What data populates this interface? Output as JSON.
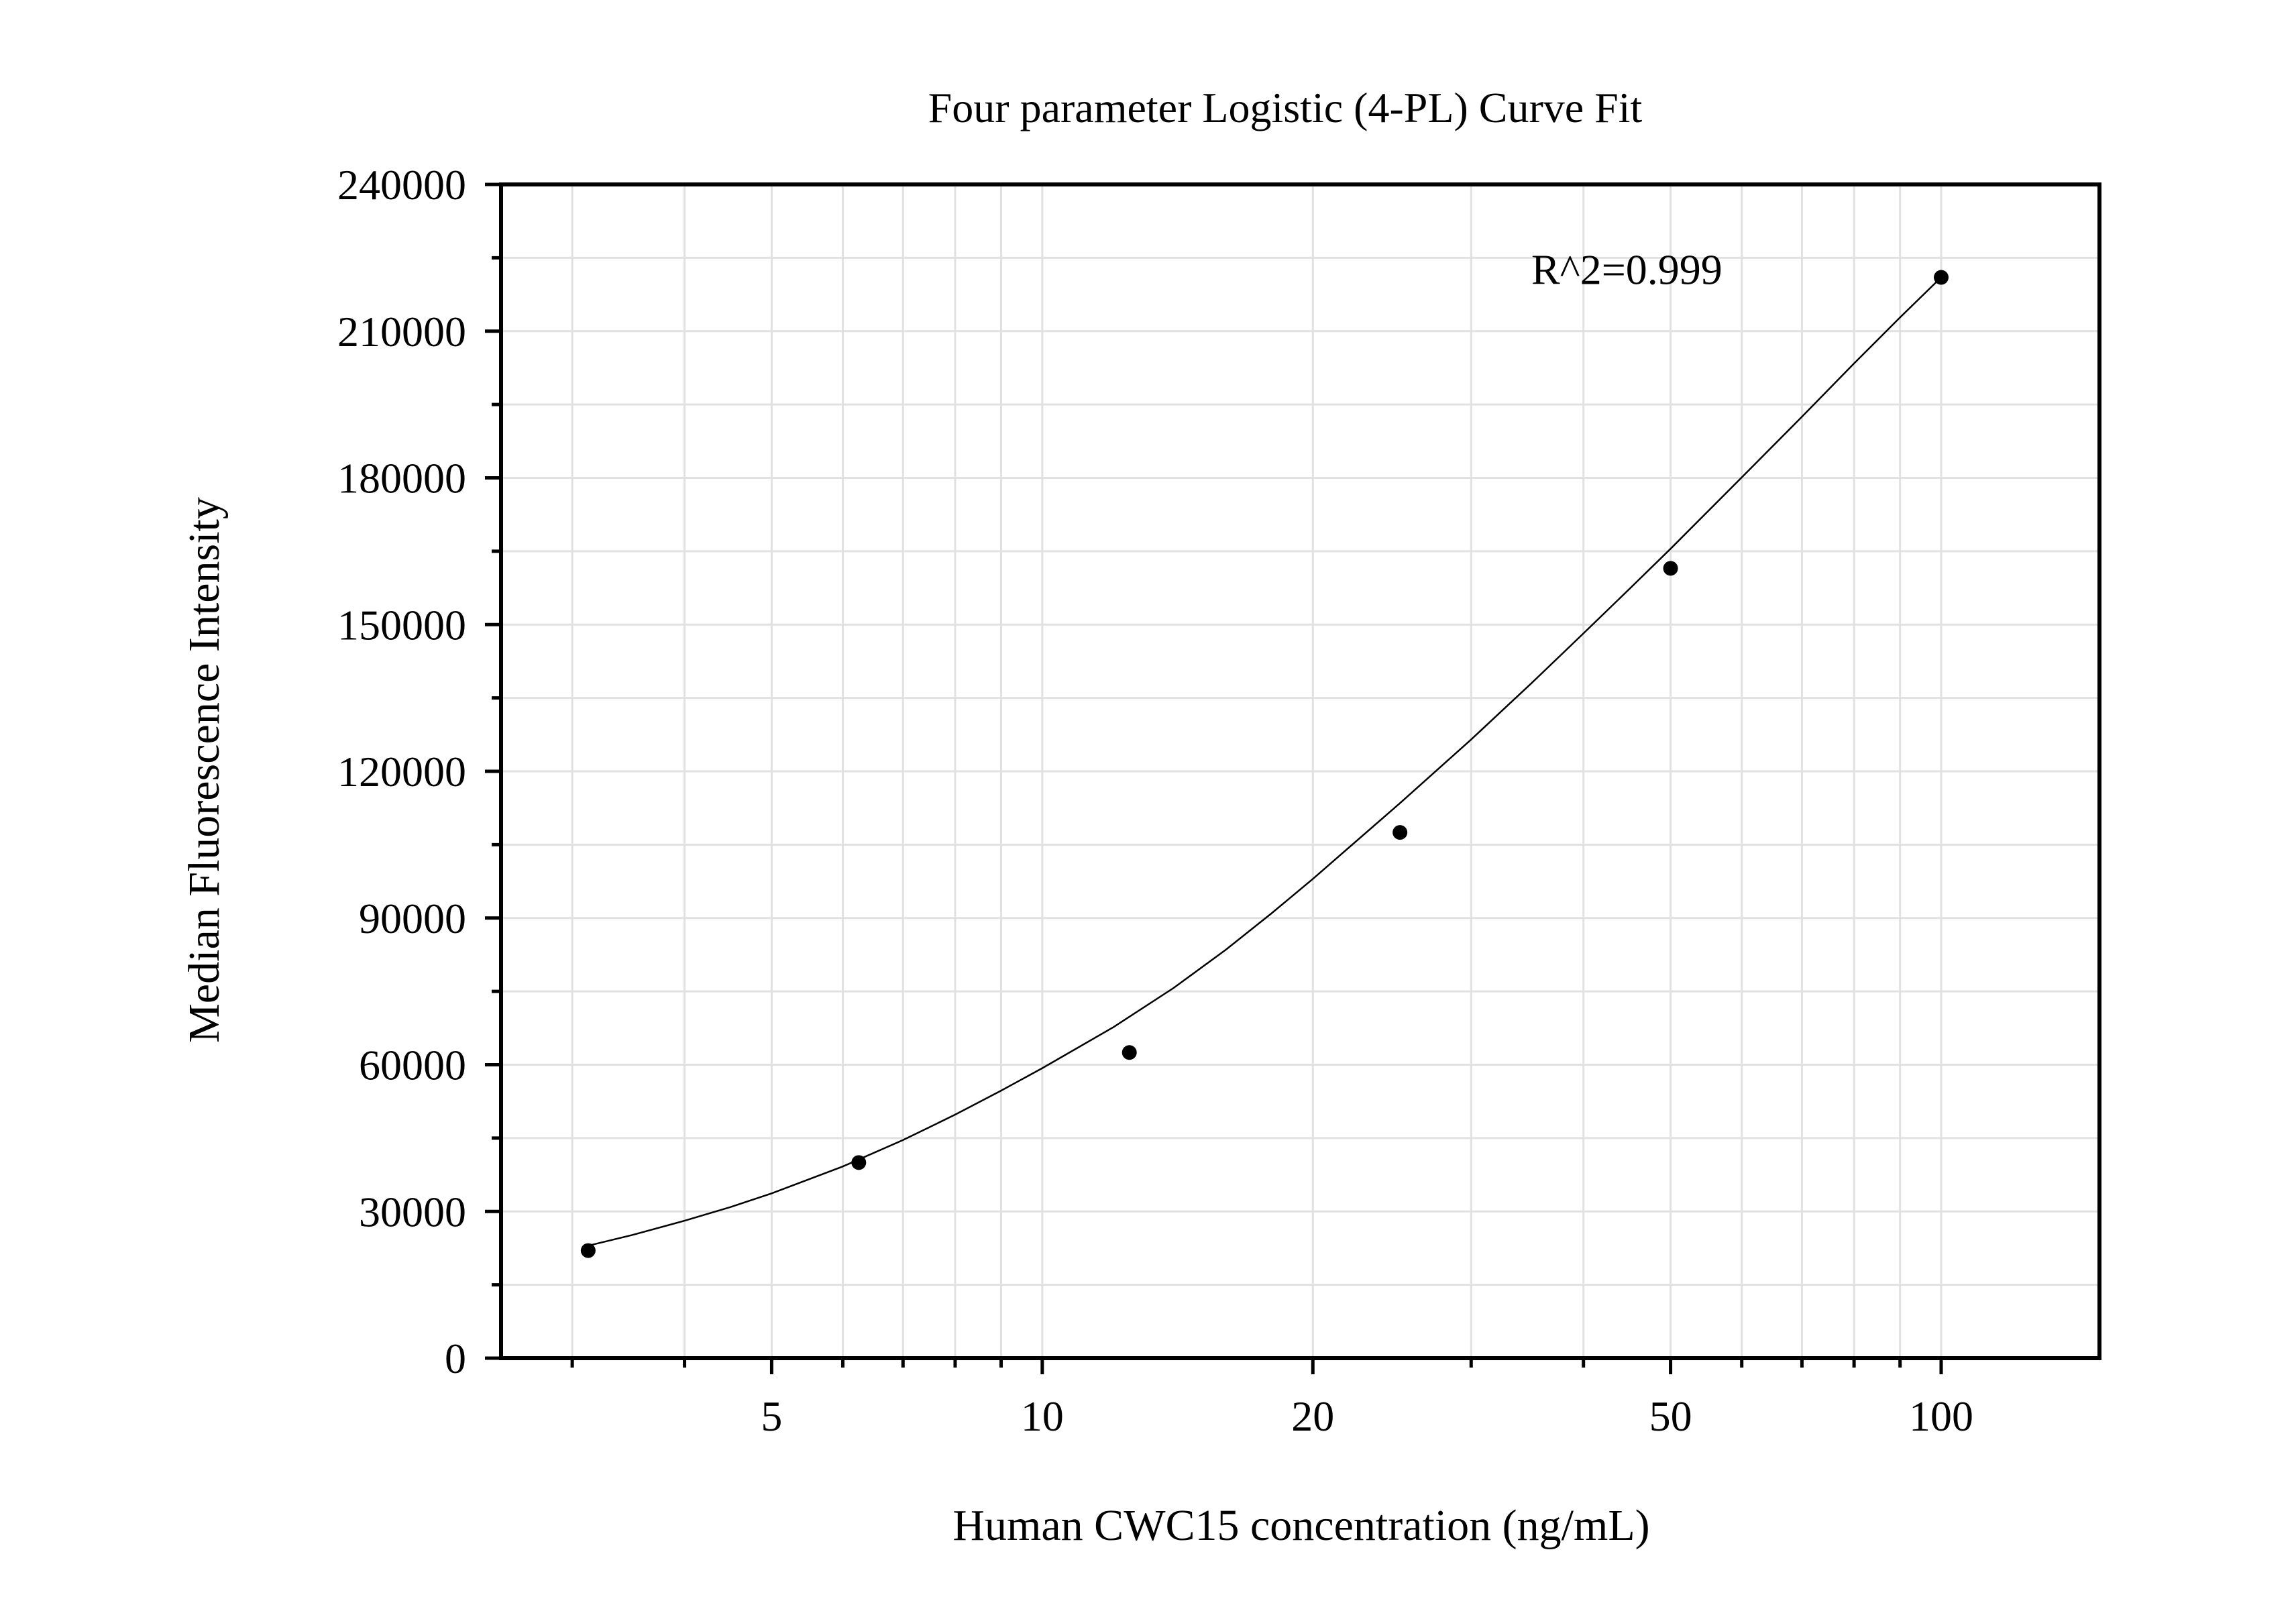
{
  "chart_data": {
    "type": "scatter",
    "title": "Four parameter Logistic (4-PL) Curve Fit",
    "xlabel": "Human CWC15 concentration (ng/mL)",
    "ylabel": "Median Fluorescence Intensity",
    "x_scale": "log",
    "xlim": [
      2.5,
      150
    ],
    "ylim": [
      0,
      240000
    ],
    "x_ticks": [
      5,
      10,
      20,
      50,
      100
    ],
    "x_tick_labels": [
      "5",
      "10",
      "20",
      "50",
      "100"
    ],
    "y_ticks": [
      0,
      30000,
      60000,
      90000,
      120000,
      150000,
      180000,
      210000,
      240000
    ],
    "y_tick_labels": [
      "0",
      "30000",
      "60000",
      "90000",
      "120000",
      "150000",
      "180000",
      "210000",
      "240000"
    ],
    "grid": true,
    "legend": "none",
    "series": [
      {
        "x": [
          3.125,
          6.25,
          12.5,
          25,
          50,
          100
        ],
        "y": [
          22000,
          40000,
          62500,
          107500,
          161500,
          221000
        ]
      }
    ],
    "fit_curve": {
      "model": "4-PL",
      "x": [
        3.125,
        3.5,
        4,
        4.5,
        5,
        6,
        7,
        8,
        9,
        10,
        12,
        14,
        16,
        18,
        20,
        25,
        30,
        35,
        40,
        45,
        50,
        60,
        70,
        80,
        90,
        100
      ],
      "y": [
        23000,
        25200,
        28100,
        30900,
        33700,
        39200,
        44600,
        49800,
        54700,
        59300,
        67700,
        75700,
        83500,
        91000,
        98000,
        113500,
        126500,
        138000,
        148200,
        157300,
        165500,
        180100,
        192500,
        203400,
        212800,
        221000
      ]
    },
    "annotations": [
      {
        "text": "R^2=0.999",
        "x": 35,
        "y": 221000
      }
    ],
    "colors": {
      "points": "#000000",
      "curve": "#000000",
      "grid": "#e1e1e1",
      "axes": "#000000"
    }
  }
}
